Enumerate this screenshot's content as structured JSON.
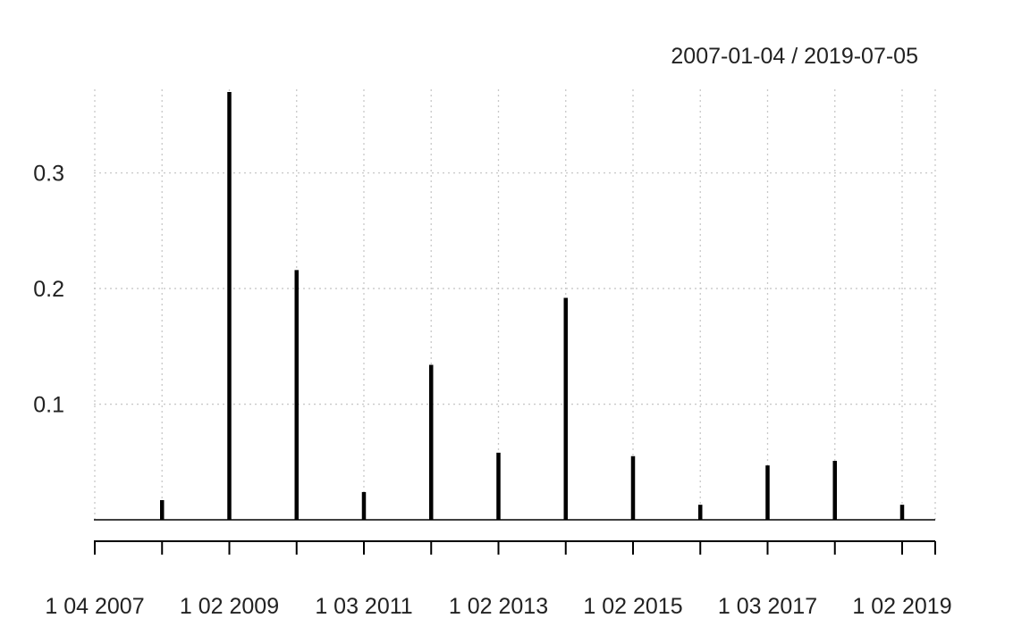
{
  "chart_data": {
    "type": "bar",
    "date_range": "2007-01-04 / 2019-07-05",
    "x": [
      "2007-04-01",
      "2008-03-01",
      "2009-02-01",
      "2010-02-01",
      "2011-03-01",
      "2012-02-01",
      "2013-02-01",
      "2014-02-01",
      "2015-02-01",
      "2016-02-01",
      "2017-03-01",
      "2018-02-01",
      "2019-02-01"
    ],
    "values": [
      0.0,
      0.017,
      0.37,
      0.216,
      0.024,
      0.134,
      0.058,
      0.192,
      0.055,
      0.013,
      0.047,
      0.051,
      0.013
    ],
    "x_tick_labels": [
      "1 04 2007",
      "1 02 2009",
      "1 03 2011",
      "1 02 2013",
      "1 02 2015",
      "1 03 2017",
      "1 02 2019"
    ],
    "y_ticks": [
      0.1,
      0.2,
      0.3
    ],
    "y_tick_labels": [
      "0.1",
      "0.2",
      "0.3"
    ],
    "ylim": [
      0,
      0.37
    ],
    "grid": true,
    "bar_color": "#000000",
    "grid_color": "#c8c8c8"
  }
}
